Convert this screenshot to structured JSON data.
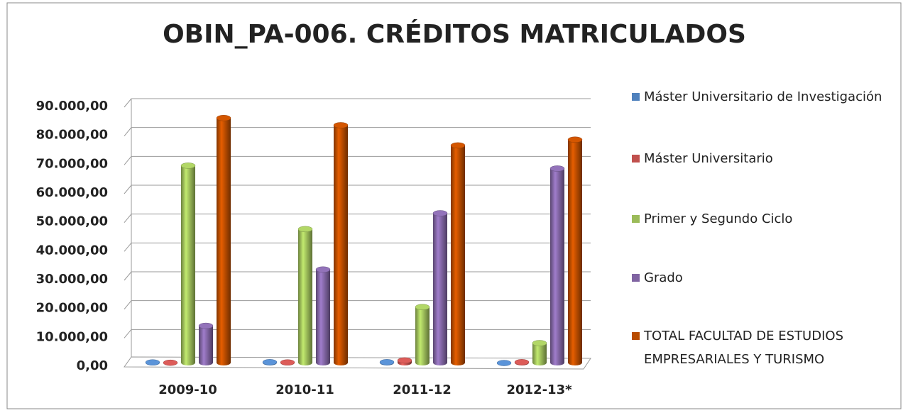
{
  "chart_data": {
    "type": "bar",
    "title": "OBIN_PA-006. CRÉDITOS MATRICULADOS",
    "categories": [
      "2009-10",
      "2010-11",
      "2011-12",
      "2012-13*"
    ],
    "series": [
      {
        "name": "Máster Universitario de Investigación",
        "color": "#4f81bd",
        "values": [
          800,
          900,
          900,
          600
        ]
      },
      {
        "name": "Máster Universitario",
        "color": "#c0504d",
        "values": [
          700,
          800,
          1500,
          900
        ]
      },
      {
        "name": "Primer y Segundo Ciclo",
        "color": "#9bbb59",
        "values": [
          69000,
          47000,
          20000,
          7500
        ]
      },
      {
        "name": "Grado",
        "color": "#8064a2",
        "values": [
          13500,
          33000,
          52500,
          68000
        ]
      },
      {
        "name": "TOTAL FACULTAD DE ESTUDIOS EMPRESARIALES Y TURISMO",
        "color": "#b84b00",
        "values": [
          85500,
          83000,
          76000,
          78000
        ]
      }
    ],
    "ylim": [
      0,
      90000
    ],
    "yticks": [
      {
        "value": 0,
        "label": "0,00"
      },
      {
        "value": 10000,
        "label": "10.000,00"
      },
      {
        "value": 20000,
        "label": "20.000,00"
      },
      {
        "value": 30000,
        "label": "30.000,00"
      },
      {
        "value": 40000,
        "label": "40.000,00"
      },
      {
        "value": 50000,
        "label": "50.000,00"
      },
      {
        "value": 60000,
        "label": "60.000,00"
      },
      {
        "value": 70000,
        "label": "70.000,00"
      },
      {
        "value": 80000,
        "label": "80.000,00"
      },
      {
        "value": 90000,
        "label": "90.000,00"
      }
    ],
    "grid": true,
    "legend": "right"
  }
}
